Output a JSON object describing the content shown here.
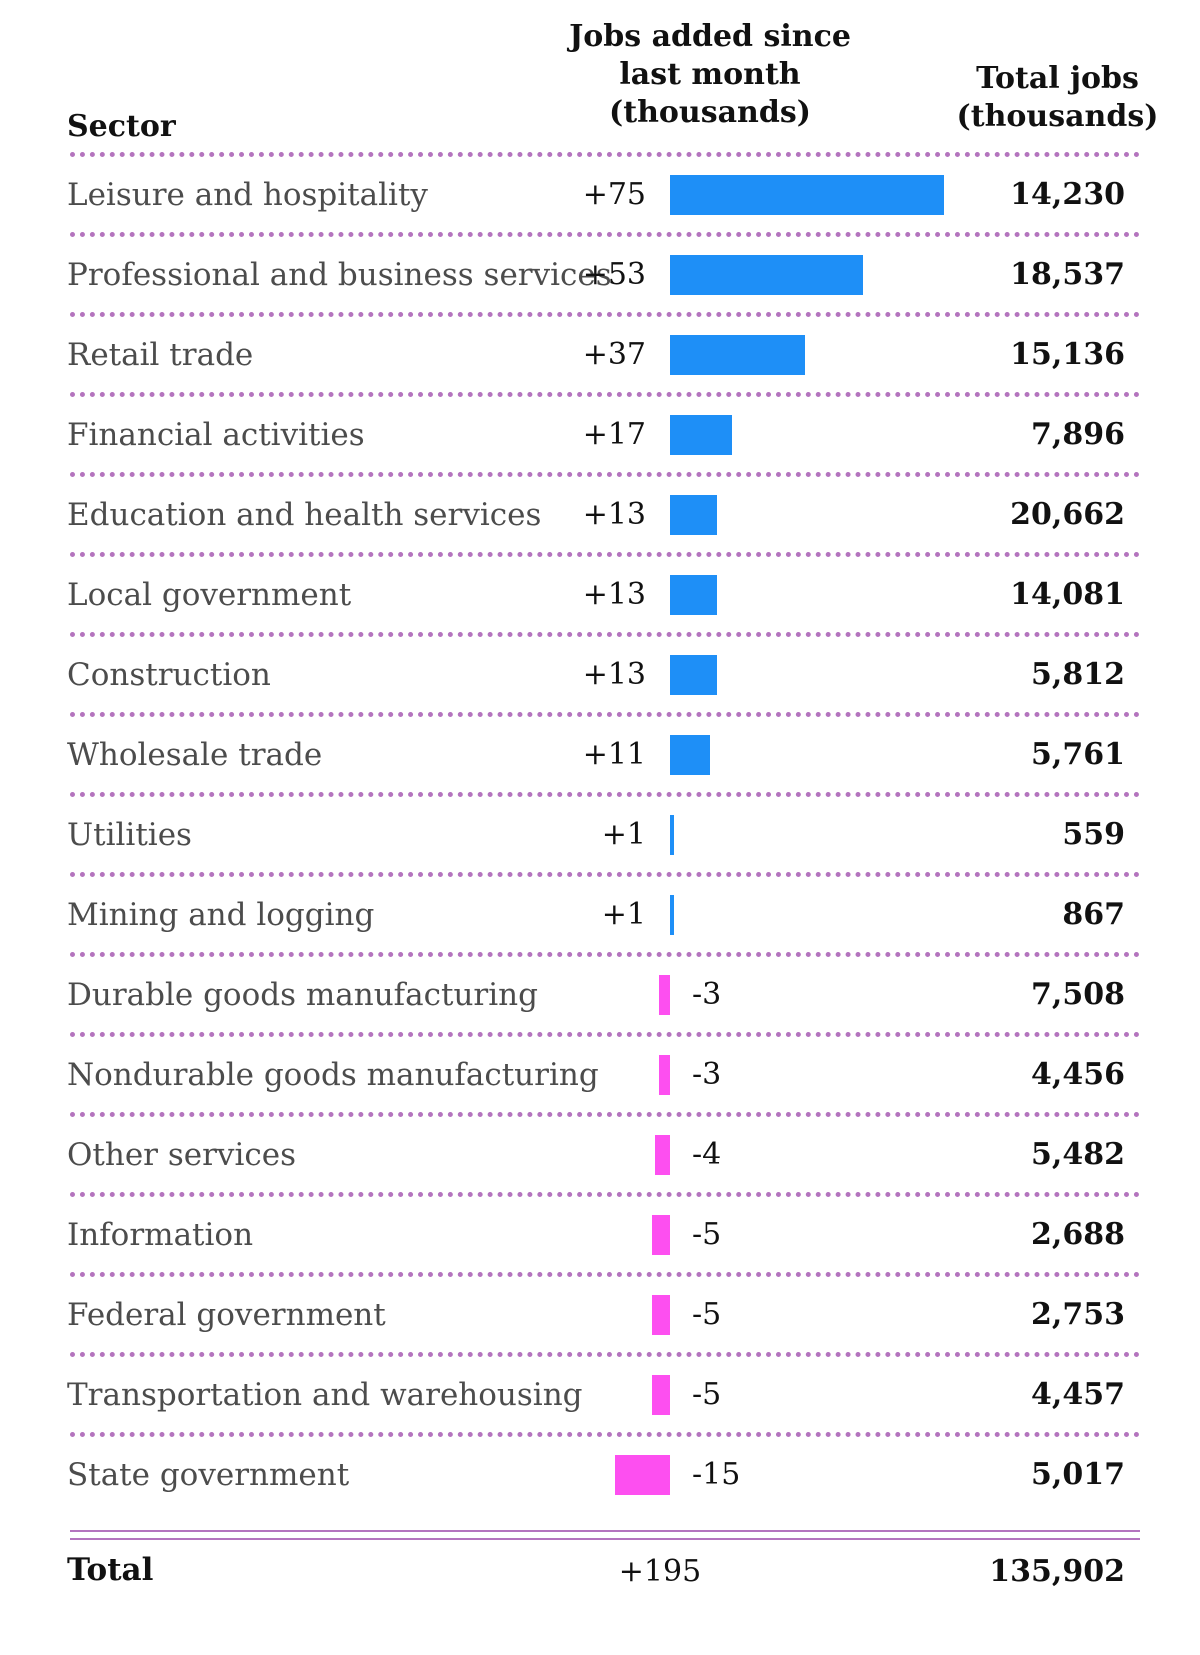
{
  "headers": {
    "sector": "Sector",
    "added": [
      "Jobs added since",
      "last month",
      "(thousands)"
    ],
    "total": [
      "Total jobs",
      "(thousands)"
    ]
  },
  "colors": {
    "positive": "#1e8ff7",
    "negative": "#fd4ff0",
    "separator": "#b474be"
  },
  "chart_data": {
    "type": "table",
    "columns": [
      "Sector",
      "Jobs added since last month (thousands)",
      "Total jobs (thousands)"
    ],
    "rows": [
      {
        "sector": "Leisure and hospitality",
        "change": 75,
        "change_label": "+75",
        "total": "14,230"
      },
      {
        "sector": "Professional and business services",
        "change": 53,
        "change_label": "+53",
        "total": "18,537"
      },
      {
        "sector": "Retail trade",
        "change": 37,
        "change_label": "+37",
        "total": "15,136"
      },
      {
        "sector": "Financial activities",
        "change": 17,
        "change_label": "+17",
        "total": "7,896"
      },
      {
        "sector": "Education and health services",
        "change": 13,
        "change_label": "+13",
        "total": "20,662"
      },
      {
        "sector": "Local government",
        "change": 13,
        "change_label": "+13",
        "total": "14,081"
      },
      {
        "sector": "Construction",
        "change": 13,
        "change_label": "+13",
        "total": "5,812"
      },
      {
        "sector": "Wholesale trade",
        "change": 11,
        "change_label": "+11",
        "total": "5,761"
      },
      {
        "sector": "Utilities",
        "change": 1,
        "change_label": "+1",
        "total": "559"
      },
      {
        "sector": "Mining and logging",
        "change": 1,
        "change_label": "+1",
        "total": "867"
      },
      {
        "sector": "Durable goods manufacturing",
        "change": -3,
        "change_label": "-3",
        "total": "7,508"
      },
      {
        "sector": "Nondurable goods manufacturing",
        "change": -3,
        "change_label": "-3",
        "total": "4,456"
      },
      {
        "sector": "Other services",
        "change": -4,
        "change_label": "-4",
        "total": "5,482"
      },
      {
        "sector": "Information",
        "change": -5,
        "change_label": "-5",
        "total": "2,688"
      },
      {
        "sector": "Federal government",
        "change": -5,
        "change_label": "-5",
        "total": "2,753"
      },
      {
        "sector": "Transportation and warehousing",
        "change": -5,
        "change_label": "-5",
        "total": "4,457"
      },
      {
        "sector": "State government",
        "change": -15,
        "change_label": "-15",
        "total": "5,017"
      }
    ],
    "total": {
      "label": "Total",
      "change_label": "+195",
      "total": "135,902"
    }
  }
}
